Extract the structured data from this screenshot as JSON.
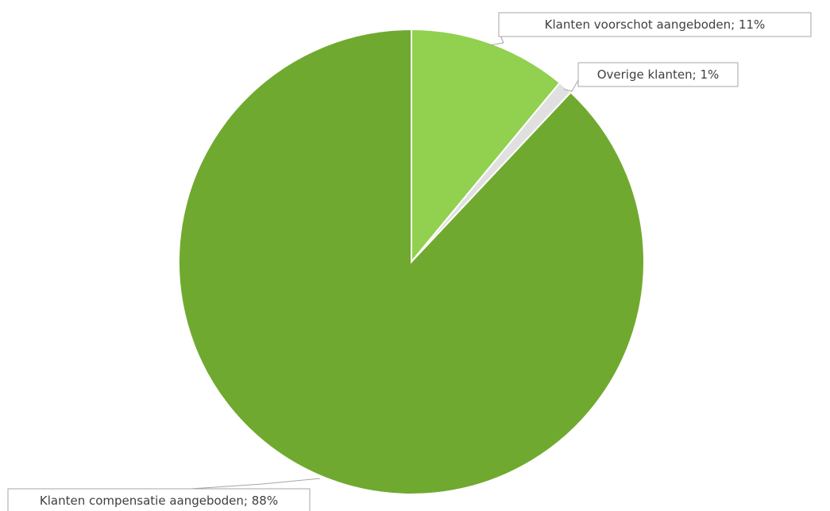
{
  "chart_data": {
    "type": "pie",
    "title": "",
    "slices": [
      {
        "label": "Klanten voorschot aangeboden",
        "value": 11,
        "display": "Klanten voorschot aangeboden; 11%",
        "color": "#92d050"
      },
      {
        "label": "Overige klanten",
        "value": 1,
        "display": "Overige klanten; 1%",
        "color": "#e0e0e0"
      },
      {
        "label": "Klanten compensatie aangeboden",
        "value": 88,
        "display": "Klanten compensatie aangeboden; 88%",
        "color": "#70a92f"
      }
    ],
    "start_angle_deg": 0,
    "direction": "clockwise",
    "legend": "none",
    "data_labels": "outside with leader lines"
  }
}
